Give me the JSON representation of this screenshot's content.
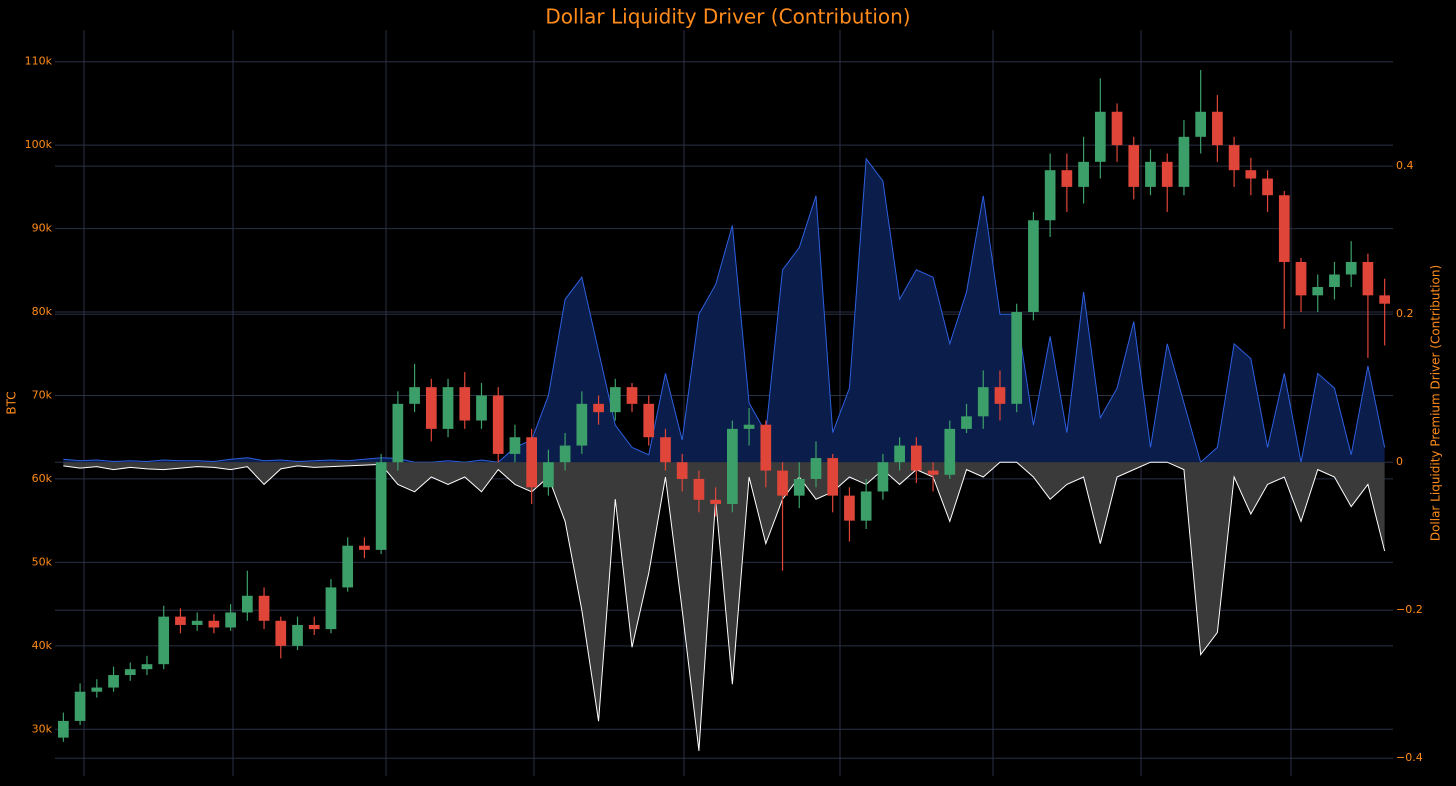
{
  "chart_data": {
    "type": "candlestick",
    "title": "Dollar Liquidity Driver (Contribution)",
    "y_label": "BTC",
    "y2_label": "Dollar Liquidity Premium Driver (Contribution)",
    "ylim": [
      24400,
      113800
    ],
    "yticks": [
      {
        "value": 30000,
        "label": "30k"
      },
      {
        "value": 40000,
        "label": "40k"
      },
      {
        "value": 50000,
        "label": "50k"
      },
      {
        "value": 60000,
        "label": "60k"
      },
      {
        "value": 70000,
        "label": "70k"
      },
      {
        "value": 80000,
        "label": "80k"
      },
      {
        "value": 90000,
        "label": "90k"
      },
      {
        "value": 100000,
        "label": "100k"
      },
      {
        "value": 110000,
        "label": "110k"
      }
    ],
    "y2lim": [
      -0.424,
      0.584
    ],
    "y2ticks": [
      {
        "value": -0.4,
        "label": "−0.4"
      },
      {
        "value": -0.2,
        "label": "−0.2"
      },
      0,
      0.2,
      0.4
    ],
    "grid": true,
    "increasing_color": "#3c9f6a",
    "decreasing_color": "#e0453a",
    "open": [
      29000,
      31000,
      34500,
      35000,
      36500,
      37200,
      37800,
      43500,
      42500,
      43000,
      42200,
      44000,
      46000,
      43000,
      40000,
      42500,
      42000,
      47000,
      52000,
      51500,
      62000,
      69000,
      71000,
      66000,
      71000,
      67000,
      70000,
      63000,
      65000,
      59000,
      62000,
      64000,
      69000,
      68000,
      71000,
      69000,
      65000,
      62000,
      60000,
      57500,
      57000,
      66000,
      66500,
      61000,
      58000,
      60000,
      62500,
      58000,
      55000,
      58500,
      62000,
      64000,
      61000,
      60500,
      66000,
      67500,
      71000,
      69000,
      80000,
      91000,
      97000,
      95000,
      98000,
      104000,
      100000,
      95000,
      98000,
      95000,
      101000,
      104000,
      100000,
      97000,
      96000,
      94000,
      86000,
      82000,
      83000,
      84500,
      86000,
      82000
    ],
    "high": [
      32000,
      35500,
      36000,
      37500,
      38000,
      38800,
      44800,
      44500,
      44000,
      43800,
      45000,
      49000,
      47000,
      43500,
      43500,
      43500,
      48000,
      53000,
      53000,
      63000,
      70500,
      73800,
      72000,
      72000,
      72800,
      71500,
      71000,
      66500,
      66000,
      63500,
      65500,
      70500,
      70000,
      72000,
      71500,
      70000,
      66000,
      63000,
      61000,
      59000,
      67000,
      68500,
      67000,
      62000,
      62000,
      64500,
      63000,
      59000,
      60000,
      63000,
      65000,
      65000,
      62000,
      67000,
      69000,
      73000,
      73000,
      81000,
      92000,
      99000,
      99000,
      101000,
      108000,
      105000,
      101000,
      99500,
      99000,
      103000,
      109000,
      106000,
      101000,
      98500,
      97000,
      94500,
      86500,
      84500,
      86000,
      88500,
      87000,
      84000
    ],
    "low": [
      28500,
      30500,
      33800,
      34500,
      35800,
      36500,
      37200,
      41500,
      41800,
      41500,
      41800,
      43000,
      42000,
      38500,
      39500,
      41300,
      41500,
      46500,
      50500,
      51000,
      61000,
      68000,
      64500,
      65000,
      66000,
      66000,
      62000,
      62000,
      57000,
      58000,
      61000,
      63000,
      66500,
      67000,
      68000,
      64000,
      61000,
      58500,
      56000,
      55500,
      56000,
      64000,
      59000,
      49000,
      56500,
      59000,
      56000,
      52500,
      54000,
      57500,
      61000,
      59500,
      58500,
      60000,
      65500,
      66000,
      67000,
      68000,
      79000,
      89000,
      92000,
      93000,
      96000,
      98000,
      93500,
      94000,
      92000,
      94000,
      99000,
      98000,
      95000,
      94000,
      92000,
      78000,
      80000,
      80000,
      81500,
      83000,
      74500,
      76000
    ],
    "close": [
      31000,
      34500,
      35000,
      36500,
      37200,
      37800,
      43500,
      42500,
      43000,
      42200,
      44000,
      46000,
      43000,
      40000,
      42500,
      42000,
      47000,
      52000,
      51500,
      62000,
      69000,
      71000,
      66000,
      71000,
      67000,
      70000,
      63000,
      65000,
      59000,
      62000,
      64000,
      69000,
      68000,
      71000,
      69000,
      65000,
      62000,
      60000,
      57500,
      57000,
      66000,
      66500,
      61000,
      58000,
      60000,
      62500,
      58000,
      55000,
      58500,
      62000,
      64000,
      61000,
      60500,
      66000,
      67500,
      71000,
      69000,
      80000,
      91000,
      97000,
      95000,
      98000,
      104000,
      100000,
      95000,
      98000,
      95000,
      101000,
      104000,
      100000,
      97000,
      96000,
      94000,
      86000,
      82000,
      83000,
      84500,
      86000,
      82000,
      81000
    ],
    "series": [
      {
        "color": "#2d5fe0",
        "fill": "#0b1d4a",
        "axis": "y2",
        "values": [
          0.004,
          0.002,
          0.003,
          0.001,
          0.002,
          0.001,
          0.003,
          0.002,
          0.002,
          0.001,
          0.004,
          0.006,
          0.002,
          0.003,
          0.001,
          0.002,
          0.003,
          0.002,
          0.004,
          0.006,
          0.005,
          0,
          0,
          0.002,
          0,
          0.003,
          0,
          0.02,
          0.03,
          0.09,
          0.22,
          0.25,
          0.15,
          0.05,
          0.02,
          0.01,
          0.12,
          0.03,
          0.2,
          0.24,
          0.32,
          0.08,
          0.04,
          0.26,
          0.29,
          0.36,
          0.04,
          0.1,
          0.41,
          0.38,
          0.22,
          0.26,
          0.25,
          0.16,
          0.23,
          0.36,
          0.2,
          0.2,
          0.05,
          0.17,
          0.04,
          0.23,
          0.06,
          0.1,
          0.19,
          0.02,
          0.16,
          0.08,
          0,
          0.02,
          0.16,
          0.14,
          0.02,
          0.12,
          0,
          0.12,
          0.1,
          0.01,
          0.13,
          0.02
        ]
      },
      {
        "color": "#ffffff",
        "fill": "#3a3a3a",
        "axis": "y2",
        "values": [
          -0.005,
          -0.008,
          -0.006,
          -0.01,
          -0.007,
          -0.009,
          -0.01,
          -0.008,
          -0.006,
          -0.007,
          -0.01,
          -0.006,
          -0.03,
          -0.009,
          -0.005,
          -0.007,
          -0.006,
          -0.005,
          -0.004,
          -0.003,
          -0.03,
          -0.04,
          -0.02,
          -0.03,
          -0.02,
          -0.04,
          -0.01,
          -0.03,
          -0.04,
          -0.02,
          -0.08,
          -0.2,
          -0.35,
          -0.05,
          -0.25,
          -0.15,
          -0.02,
          -0.2,
          -0.39,
          -0.05,
          -0.3,
          -0.02,
          -0.11,
          -0.05,
          -0.02,
          -0.05,
          -0.04,
          -0.02,
          -0.03,
          -0.01,
          -0.03,
          -0.01,
          -0.02,
          -0.08,
          -0.01,
          -0.02,
          0,
          0,
          -0.02,
          -0.05,
          -0.03,
          -0.02,
          -0.11,
          -0.02,
          -0.01,
          0,
          0,
          -0.01,
          -0.26,
          -0.23,
          -0.02,
          -0.07,
          -0.03,
          -0.02,
          -0.08,
          -0.01,
          -0.02,
          -0.06,
          -0.03,
          -0.12
        ]
      }
    ]
  }
}
